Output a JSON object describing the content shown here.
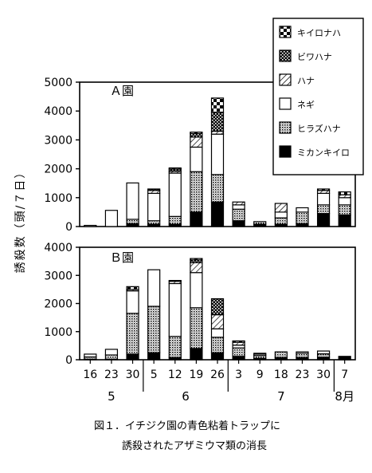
{
  "caption": {
    "line1": "図１．イチジク園の青色粘着トラップに",
    "line2": "誘殺されたアザミウマ類の消長"
  },
  "chart_data": {
    "type": "bar",
    "stacked": true,
    "ylabel": "誘殺数（頭/７日）",
    "categories": [
      "16",
      "23",
      "30",
      "5",
      "12",
      "19",
      "26",
      "3",
      "9",
      "18",
      "23",
      "30",
      "7"
    ],
    "month_labels": [
      {
        "label": "5",
        "start": 0,
        "end": 3
      },
      {
        "label": "6",
        "start": 3,
        "end": 7
      },
      {
        "label": "7",
        "start": 7,
        "end": 12
      },
      {
        "label": "8月",
        "start": 12,
        "end": 13
      }
    ],
    "legend": [
      {
        "name": "キイロナハ",
        "pattern": "checker"
      },
      {
        "name": "ビワハナ",
        "pattern": "dots"
      },
      {
        "name": "ハナ",
        "pattern": "hatch"
      },
      {
        "name": "ネギ",
        "pattern": "white"
      },
      {
        "name": "ヒラズハナ",
        "pattern": "stipple"
      },
      {
        "name": "ミカンキイロ",
        "pattern": "black"
      }
    ],
    "panels": [
      {
        "label": "Ａ園",
        "yticks": [
          0,
          1000,
          2000,
          3000,
          4000,
          5000
        ],
        "ylim": [
          0,
          5000
        ],
        "series": [
          {
            "name": "ミカンキイロ",
            "values": [
              0,
              0,
              100,
              80,
              80,
              500,
              850,
              200,
              80,
              80,
              100,
              450,
              400
            ]
          },
          {
            "name": "ヒラズハナ",
            "values": [
              0,
              0,
              150,
              120,
              270,
              1400,
              950,
              400,
              90,
              220,
              400,
              300,
              350
            ]
          },
          {
            "name": "ネギ",
            "values": [
              40,
              560,
              1260,
              950,
              1500,
              850,
              1400,
              150,
              0,
              200,
              150,
              400,
              250
            ]
          },
          {
            "name": "ハナ",
            "values": [
              0,
              0,
              0,
              100,
              60,
              350,
              100,
              100,
              0,
              300,
              0,
              100,
              100
            ]
          },
          {
            "name": "ビワハナ",
            "values": [
              0,
              0,
              0,
              50,
              80,
              120,
              650,
              0,
              0,
              0,
              0,
              0,
              0
            ]
          },
          {
            "name": "キイロナハ",
            "values": [
              0,
              0,
              0,
              0,
              40,
              50,
              500,
              0,
              0,
              0,
              0,
              50,
              100
            ]
          }
        ]
      },
      {
        "label": "Ｂ園",
        "yticks": [
          0,
          1000,
          2000,
          3000,
          4000
        ],
        "ylim": [
          0,
          4000
        ],
        "series": [
          {
            "name": "ミカンキイロ",
            "values": [
              20,
              20,
              200,
              250,
              80,
              400,
              250,
              120,
              50,
              80,
              80,
              90,
              120
            ]
          },
          {
            "name": "ヒラズハナ",
            "values": [
              80,
              150,
              1450,
              1650,
              750,
              1450,
              550,
              300,
              100,
              200,
              150,
              120,
              0
            ]
          },
          {
            "name": "ネギ",
            "values": [
              100,
              200,
              800,
              1300,
              1880,
              1250,
              300,
              100,
              50,
              0,
              50,
              100,
              0
            ]
          },
          {
            "name": "ハナ",
            "values": [
              0,
              0,
              50,
              0,
              80,
              350,
              500,
              100,
              30,
              0,
              0,
              0,
              0
            ]
          },
          {
            "name": "ビワハナ",
            "values": [
              0,
              0,
              0,
              0,
              0,
              100,
              570,
              0,
              0,
              0,
              0,
              0,
              0
            ]
          },
          {
            "name": "キイロナハ",
            "values": [
              0,
              0,
              100,
              0,
              30,
              50,
              0,
              50,
              0,
              0,
              0,
              0,
              0
            ]
          }
        ]
      }
    ]
  }
}
